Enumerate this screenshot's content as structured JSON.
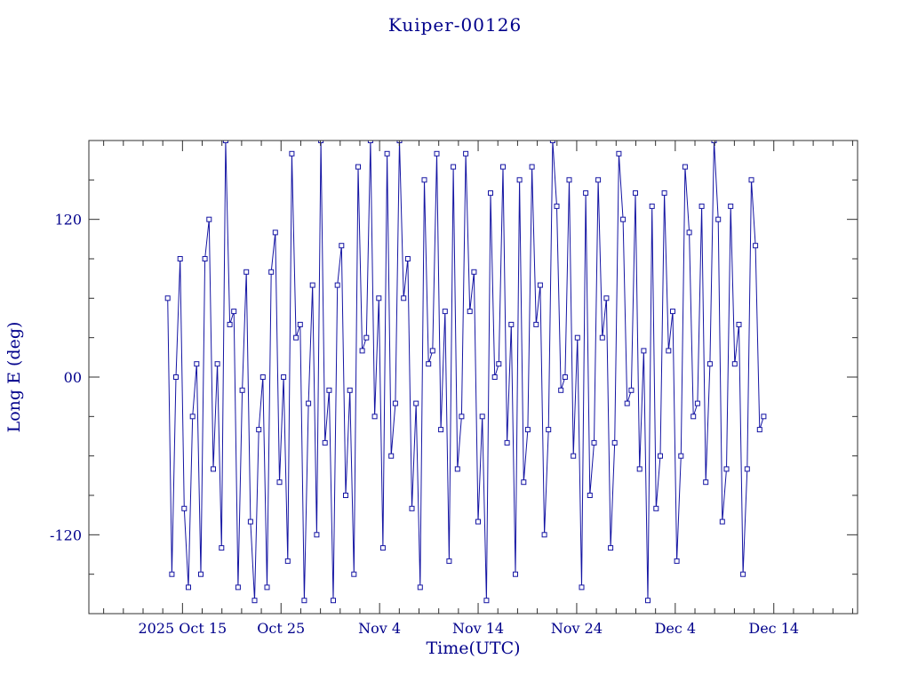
{
  "chart_data": {
    "type": "line",
    "title": "Kuiper-00126",
    "xlabel": "Time(UTC)",
    "ylabel": "Long E (deg)",
    "color": "#1515a3",
    "text_color": "#00008B",
    "axis_color": "#2f2f2f",
    "background": "#ffffff",
    "marker": "open-square",
    "grid": false,
    "legend": "none",
    "x_days_origin": "2025-10-05",
    "x_domain_days": [
      0,
      78
    ],
    "x_ticks": [
      {
        "day": 9.5,
        "label": "2025 Oct 15"
      },
      {
        "day": 19.5,
        "label": "Oct 25"
      },
      {
        "day": 29.5,
        "label": "Nov 4"
      },
      {
        "day": 39.5,
        "label": "Nov 14"
      },
      {
        "day": 49.5,
        "label": "Nov 24"
      },
      {
        "day": 59.5,
        "label": "Dec 4"
      },
      {
        "day": 69.5,
        "label": "Dec 14"
      }
    ],
    "x_minor_tick_step_days": 2,
    "ylim": [
      -180,
      180
    ],
    "y_ticks": [
      {
        "value": 120,
        "label": "120"
      },
      {
        "value": 0,
        "label": "00"
      },
      {
        "value": -120,
        "label": "-120"
      }
    ],
    "y_minor_tick_step": 30,
    "points": [
      [
        8.0,
        60
      ],
      [
        8.42,
        -150
      ],
      [
        8.84,
        0
      ],
      [
        9.26,
        90
      ],
      [
        9.68,
        -100
      ],
      [
        10.1,
        -160
      ],
      [
        10.52,
        -30
      ],
      [
        10.94,
        10
      ],
      [
        11.36,
        -150
      ],
      [
        11.78,
        90
      ],
      [
        12.2,
        120
      ],
      [
        12.62,
        -70
      ],
      [
        13.04,
        10
      ],
      [
        13.46,
        -130
      ],
      [
        13.88,
        180
      ],
      [
        14.3,
        40
      ],
      [
        14.72,
        50
      ],
      [
        15.14,
        -160
      ],
      [
        15.56,
        -10
      ],
      [
        15.98,
        80
      ],
      [
        16.4,
        -110
      ],
      [
        16.82,
        -170
      ],
      [
        17.24,
        -40
      ],
      [
        17.66,
        0
      ],
      [
        18.08,
        -160
      ],
      [
        18.5,
        80
      ],
      [
        18.92,
        110
      ],
      [
        19.34,
        -80
      ],
      [
        19.76,
        0
      ],
      [
        20.18,
        -140
      ],
      [
        20.6,
        170
      ],
      [
        21.02,
        30
      ],
      [
        21.44,
        40
      ],
      [
        21.86,
        -170
      ],
      [
        22.28,
        -20
      ],
      [
        22.7,
        70
      ],
      [
        23.12,
        -120
      ],
      [
        23.54,
        180
      ],
      [
        23.96,
        -50
      ],
      [
        24.38,
        -10
      ],
      [
        24.8,
        -170
      ],
      [
        25.22,
        70
      ],
      [
        25.64,
        100
      ],
      [
        26.06,
        -90
      ],
      [
        26.48,
        -10
      ],
      [
        26.9,
        -150
      ],
      [
        27.32,
        160
      ],
      [
        27.74,
        20
      ],
      [
        28.16,
        30
      ],
      [
        28.58,
        180
      ],
      [
        29.0,
        -30
      ],
      [
        29.42,
        60
      ],
      [
        29.84,
        -130
      ],
      [
        30.26,
        170
      ],
      [
        30.68,
        -60
      ],
      [
        31.1,
        -20
      ],
      [
        31.52,
        180
      ],
      [
        31.94,
        60
      ],
      [
        32.36,
        90
      ],
      [
        32.78,
        -100
      ],
      [
        33.2,
        -20
      ],
      [
        33.62,
        -160
      ],
      [
        34.04,
        150
      ],
      [
        34.46,
        10
      ],
      [
        34.88,
        20
      ],
      [
        35.3,
        170
      ],
      [
        35.72,
        -40
      ],
      [
        36.14,
        50
      ],
      [
        36.56,
        -140
      ],
      [
        36.98,
        160
      ],
      [
        37.4,
        -70
      ],
      [
        37.82,
        -30
      ],
      [
        38.24,
        170
      ],
      [
        38.66,
        50
      ],
      [
        39.08,
        80
      ],
      [
        39.5,
        -110
      ],
      [
        39.92,
        -30
      ],
      [
        40.34,
        -170
      ],
      [
        40.76,
        140
      ],
      [
        41.18,
        0
      ],
      [
        41.6,
        10
      ],
      [
        42.02,
        160
      ],
      [
        42.44,
        -50
      ],
      [
        42.86,
        40
      ],
      [
        43.28,
        -150
      ],
      [
        43.7,
        150
      ],
      [
        44.12,
        -80
      ],
      [
        44.54,
        -40
      ],
      [
        44.96,
        160
      ],
      [
        45.38,
        40
      ],
      [
        45.8,
        70
      ],
      [
        46.22,
        -120
      ],
      [
        46.64,
        -40
      ],
      [
        47.06,
        180
      ],
      [
        47.48,
        130
      ],
      [
        47.9,
        -10
      ],
      [
        48.32,
        0
      ],
      [
        48.74,
        150
      ],
      [
        49.16,
        -60
      ],
      [
        49.58,
        30
      ],
      [
        50.0,
        -160
      ],
      [
        50.42,
        140
      ],
      [
        50.84,
        -90
      ],
      [
        51.26,
        -50
      ],
      [
        51.68,
        150
      ],
      [
        52.1,
        30
      ],
      [
        52.52,
        60
      ],
      [
        52.94,
        -130
      ],
      [
        53.36,
        -50
      ],
      [
        53.78,
        170
      ],
      [
        54.2,
        120
      ],
      [
        54.62,
        -20
      ],
      [
        55.04,
        -10
      ],
      [
        55.46,
        140
      ],
      [
        55.88,
        -70
      ],
      [
        56.3,
        20
      ],
      [
        56.72,
        -170
      ],
      [
        57.14,
        130
      ],
      [
        57.56,
        -100
      ],
      [
        57.98,
        -60
      ],
      [
        58.4,
        140
      ],
      [
        58.82,
        20
      ],
      [
        59.24,
        50
      ],
      [
        59.66,
        -140
      ],
      [
        60.08,
        -60
      ],
      [
        60.5,
        160
      ],
      [
        60.92,
        110
      ],
      [
        61.34,
        -30
      ],
      [
        61.76,
        -20
      ],
      [
        62.18,
        130
      ],
      [
        62.6,
        -80
      ],
      [
        63.02,
        10
      ],
      [
        63.44,
        180
      ],
      [
        63.86,
        120
      ],
      [
        64.28,
        -110
      ],
      [
        64.7,
        -70
      ],
      [
        65.12,
        130
      ],
      [
        65.54,
        10
      ],
      [
        65.96,
        40
      ],
      [
        66.38,
        -150
      ],
      [
        66.8,
        -70
      ],
      [
        67.22,
        150
      ],
      [
        67.64,
        100
      ],
      [
        68.06,
        -40
      ],
      [
        68.48,
        -30
      ]
    ]
  }
}
